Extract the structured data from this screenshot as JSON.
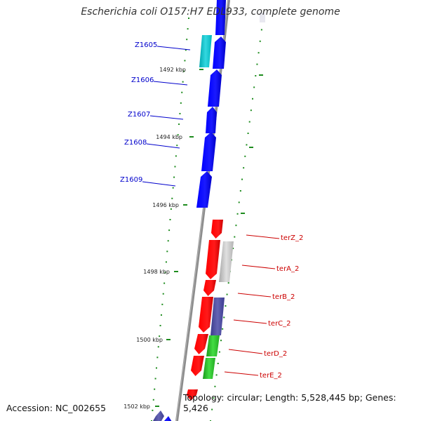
{
  "map_title": "Escherichia coli O157:H7 EDL933, complete genome",
  "footer": {
    "accession": "Accession: NC_002655",
    "summary": "Topology: circular; Length: 5,528,445 bp; Genes: 5,426"
  },
  "colors": {
    "backbone": "#8c8c8c",
    "forward_gene": "#0000ff",
    "reverse_gene": "#ff0000",
    "pseudogene": "#00c0c8",
    "other_gene": "#c0c0c0",
    "purple_gene": "#4b4ba0",
    "green_gene": "#22bb22",
    "tick": "#1e8c1e",
    "forward_label": "#0000cc",
    "reverse_label": "#cc0000"
  },
  "ruler": [
    "1492 kbp",
    "1494 kbp",
    "1496 kbp",
    "1498 kbp",
    "1500 kbp",
    "1502 kbp"
  ],
  "forward_labels": [
    "Z1605",
    "Z1606",
    "Z1607",
    "Z1608",
    "Z1609"
  ],
  "reverse_labels": [
    "terZ_2",
    "terA_2",
    "terB_2",
    "terC_2",
    "terD_2",
    "terE_2"
  ]
}
